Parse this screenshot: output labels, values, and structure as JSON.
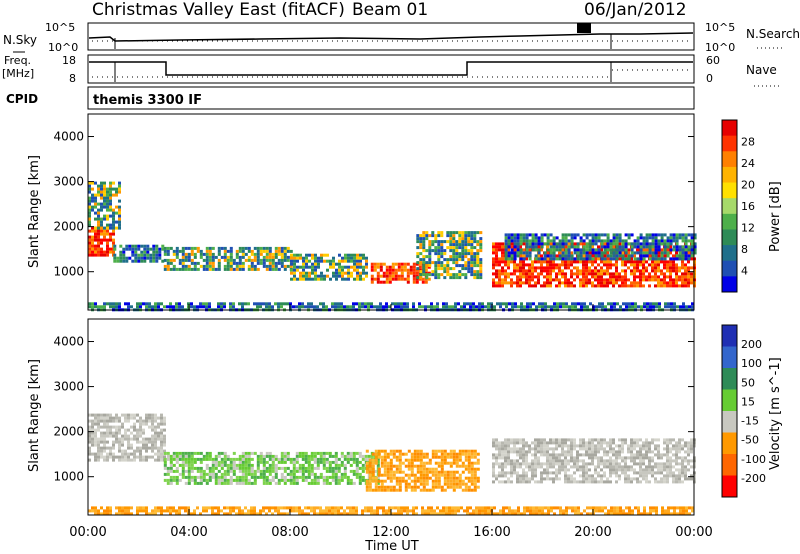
{
  "header": {
    "title": "Christmas Valley East (fitACF)",
    "beam": "Beam 01",
    "date": "06/Jan/2012"
  },
  "strip_panels": {
    "nsky": {
      "label": "N.Sky",
      "ticks": [
        "10^5",
        "10^0"
      ]
    },
    "nsearch": {
      "label": "N.Search",
      "ticks": [
        "10^5",
        "10^0"
      ]
    },
    "freq": {
      "label_line1": "Freq.",
      "label_line2": "[MHz]",
      "ticks": [
        "18",
        "8"
      ]
    },
    "nave": {
      "label": "Nave",
      "ticks": [
        "60",
        "0"
      ]
    },
    "cpid": {
      "label": "CPID",
      "value": "themis 3300 IF"
    }
  },
  "chart_data": [
    {
      "type": "heatmap",
      "name": "Power",
      "ylabel": "Slant Range [km]",
      "ylim": [
        150,
        4500
      ],
      "yticks": [
        "1000",
        "2000",
        "3000",
        "4000"
      ],
      "colorbar": {
        "label": "Power [dB]",
        "ticks": [
          "28",
          "24",
          "20",
          "16",
          "12",
          "8",
          "4"
        ],
        "colors": [
          "#e60000",
          "#ff3300",
          "#ff8000",
          "#ffb300",
          "#ffe000",
          "#a6d96a",
          "#4daf4a",
          "#2e8b57",
          "#1f6f8b",
          "#1f4fb3",
          "#0000e6"
        ]
      },
      "bands": [
        {
          "t0": 0.0,
          "t1": 1.0,
          "r0": 1400,
          "r1": 2000,
          "level": "high"
        },
        {
          "t0": 0.0,
          "t1": 1.2,
          "r0": 2000,
          "r1": 3000,
          "level": "mid"
        },
        {
          "t0": 1.0,
          "t1": 3.0,
          "r0": 1250,
          "r1": 1600,
          "level": "low"
        },
        {
          "t0": 3.0,
          "t1": 8.0,
          "r0": 1050,
          "r1": 1550,
          "level": "mid"
        },
        {
          "t0": 8.0,
          "t1": 11.0,
          "r0": 850,
          "r1": 1400,
          "level": "mid"
        },
        {
          "t0": 11.2,
          "t1": 13.5,
          "r0": 750,
          "r1": 1200,
          "level": "high"
        },
        {
          "t0": 13.0,
          "t1": 15.5,
          "r0": 900,
          "r1": 1900,
          "level": "mid"
        },
        {
          "t0": 16.0,
          "t1": 24.0,
          "r0": 700,
          "r1": 1650,
          "level": "high"
        },
        {
          "t0": 16.5,
          "t1": 24.0,
          "r0": 1300,
          "r1": 1850,
          "level": "low"
        },
        {
          "t0": 0.0,
          "t1": 24.0,
          "r0": 180,
          "r1": 320,
          "level": "low"
        }
      ]
    },
    {
      "type": "heatmap",
      "name": "Velocity",
      "ylabel": "Slant Range [km]",
      "xlabel": "Time UT",
      "xticks": [
        "00:00",
        "04:00",
        "08:00",
        "12:00",
        "16:00",
        "20:00",
        "00:00"
      ],
      "ylim": [
        150,
        4500
      ],
      "yticks": [
        "1000",
        "2000",
        "3000",
        "4000"
      ],
      "colorbar": {
        "label": "Velocity [m s^-1]",
        "ticks": [
          "200",
          "100",
          "50",
          "15",
          "-15",
          "-50",
          "-100",
          "-200"
        ],
        "colors": [
          "#1f2fb3",
          "#3366cc",
          "#2e8b57",
          "#66cc33",
          "#c8c8c0",
          "#ff9900",
          "#ff6600",
          "#ff0000"
        ]
      },
      "bands": [
        {
          "t0": 0.0,
          "t1": 3.0,
          "r0": 1400,
          "r1": 2400,
          "level": "gray"
        },
        {
          "t0": 3.0,
          "t1": 11.5,
          "r0": 850,
          "r1": 1550,
          "level": "green"
        },
        {
          "t0": 11.0,
          "t1": 15.5,
          "r0": 700,
          "r1": 1600,
          "level": "orange"
        },
        {
          "t0": 16.0,
          "t1": 24.0,
          "r0": 900,
          "r1": 1850,
          "level": "gray"
        },
        {
          "t0": 0.0,
          "t1": 24.0,
          "r0": 180,
          "r1": 340,
          "level": "orange"
        }
      ]
    }
  ]
}
